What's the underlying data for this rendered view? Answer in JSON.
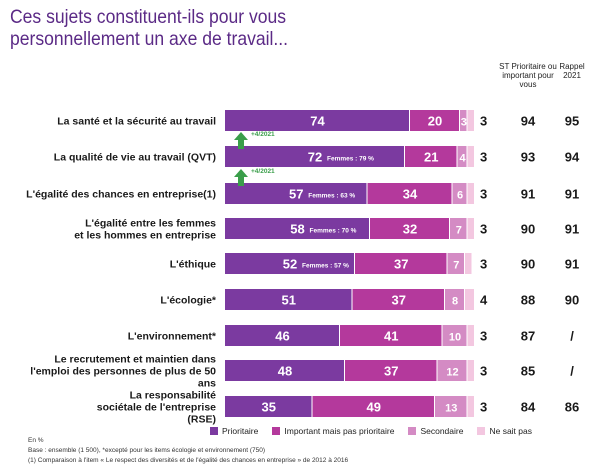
{
  "title": "Ces sujets constituent-ils pour vous personnellement un axe de travail...",
  "columns": {
    "st_label": "ST Prioritaire ou important pour vous",
    "rappel_label": "Rappel 2021"
  },
  "colors": {
    "prioritaire": "#7b3aa0",
    "important": "#b4399c",
    "secondaire": "#d48bc4",
    "nsp": "#f3c7e0",
    "arrow": "#3a9e4a",
    "title": "#5b2a86"
  },
  "chart_data": {
    "type": "bar",
    "orientation": "horizontal",
    "stacked": true,
    "xlim": [
      0,
      100
    ],
    "categories": [
      "La santé et la sécurité au travail",
      "La qualité de vie au travail (QVT)",
      "L'égalité des chances en entreprise(1)",
      "L'égalité entre les femmes et les hommes en entreprise",
      "L'éthique",
      "L'écologie*",
      "L'environnement*",
      "Le recrutement et maintien dans l'emploi des personnes de plus de 50 ans",
      "La responsabilité sociétale de l'entreprise (RSE)"
    ],
    "series": [
      {
        "name": "Prioritaire",
        "values": [
          74,
          72,
          57,
          58,
          52,
          51,
          46,
          48,
          35
        ]
      },
      {
        "name": "Important mais pas prioritaire",
        "values": [
          20,
          21,
          34,
          32,
          37,
          37,
          41,
          37,
          49
        ]
      },
      {
        "name": "Secondaire",
        "values": [
          3,
          4,
          6,
          7,
          7,
          8,
          10,
          12,
          13
        ]
      },
      {
        "name": "Ne sait pas",
        "values": [
          3,
          3,
          3,
          3,
          3,
          4,
          3,
          3,
          3
        ]
      }
    ],
    "st_prioritaire_ou_important": [
      94,
      93,
      91,
      90,
      90,
      88,
      87,
      85,
      84
    ],
    "rappel_2021": [
      "95",
      "94",
      "91",
      "91",
      "91",
      "90",
      "/",
      "/",
      "86"
    ],
    "annotations": [
      {
        "row": 1,
        "text": "+4/2021"
      },
      {
        "row": 2,
        "text": "+4/2021"
      }
    ],
    "femmes_labels": [
      {
        "row": 1,
        "text": "Femmes : 79 %"
      },
      {
        "row": 2,
        "text": "Femmes : 63 %"
      },
      {
        "row": 3,
        "text": "Femmes : 70 %"
      },
      {
        "row": 4,
        "text": "Femmes : 57 %"
      }
    ]
  },
  "notes": {
    "unit": "En %",
    "base": "Base : ensemble (1 500), *excepté pour les items écologie et environnement (750)",
    "footnote": "(1) Comparaison à l'item « Le respect des diversités et de l'égalité des chances en entreprise » de 2012 à 2016"
  }
}
